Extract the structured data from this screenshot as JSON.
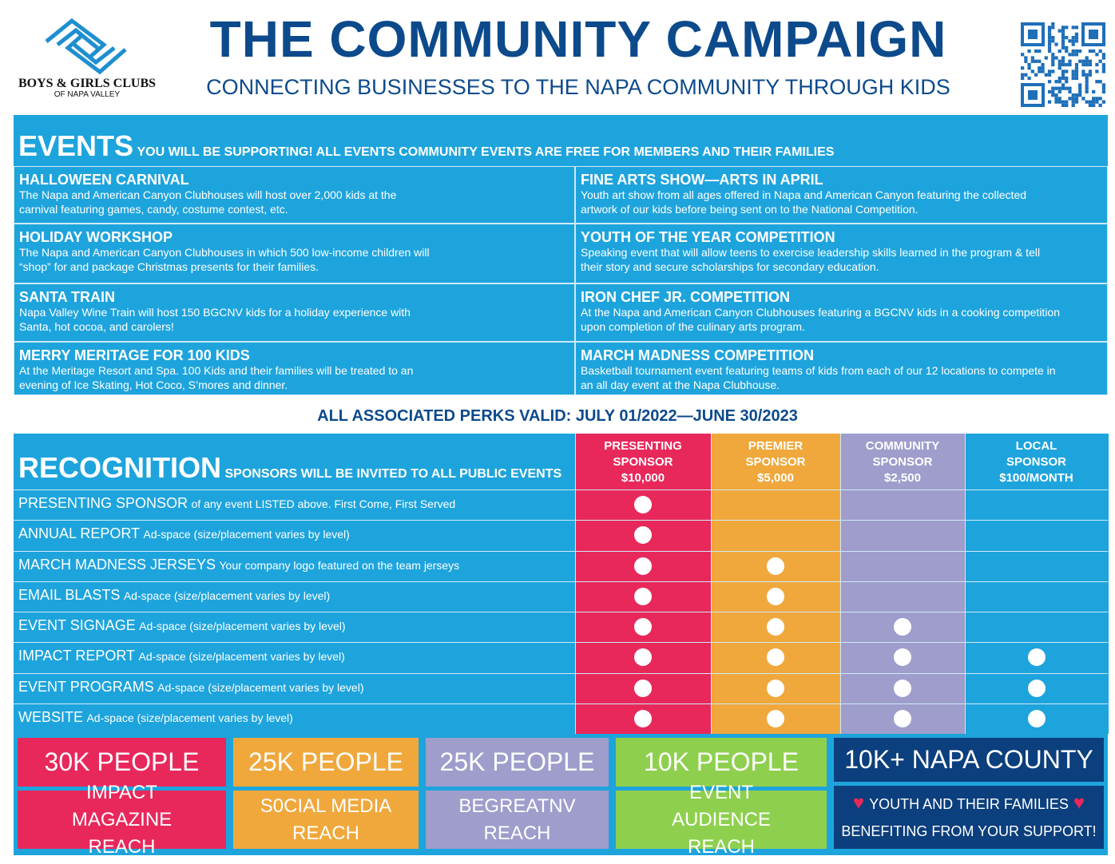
{
  "header": {
    "logo_name": "BOYS & GIRLS CLUBS",
    "logo_sub": "OF NAPA VALLEY",
    "title": "THE COMMUNITY CAMPAIGN",
    "subtitle": "CONNECTING BUSINESSES TO THE NAPA COMMUNITY THROUGH KIDS"
  },
  "events": {
    "heading": "EVENTS",
    "heading_note": "YOU WILL BE SUPPORTING! ALL EVENTS COMMUNITY EVENTS ARE FREE FOR MEMBERS AND THEIR FAMILIES",
    "items": [
      {
        "title": "HALLOWEEN CARNIVAL",
        "description": "The Napa and American Canyon Clubhouses will host over 2,000 kids at the carnival featuring games, candy, costume contest, etc."
      },
      {
        "title": "FINE ARTS SHOW—ARTS IN APRIL",
        "description": "Youth art show from all ages offered in Napa and American Canyon featuring the collected artwork of our kids before being sent on to the National Competition."
      },
      {
        "title": "HOLIDAY WORKSHOP",
        "description": "The Napa and American Canyon Clubhouses in which 500 low-income children will “shop” for and package Christmas presents for their families."
      },
      {
        "title": "YOUTH OF THE YEAR COMPETITION",
        "description": "Speaking event that will allow teens to exercise leadership skills learned in the program & tell their story and secure scholarships for secondary education."
      },
      {
        "title": "SANTA TRAIN",
        "description": "Napa Valley Wine Train will host 150 BGCNV kids for a holiday experience with Santa, hot cocoa, and carolers!"
      },
      {
        "title": "IRON CHEF JR. COMPETITION",
        "description": "At the Napa and American Canyon Clubhouses featuring a BGCNV kids in a cooking competition upon completion of the culinary arts program."
      },
      {
        "title": "MERRY MERITAGE FOR 100 KIDS",
        "description": "At the Meritage Resort and Spa. 100 Kids and their families will be treated to an evening of Ice Skating, Hot Coco, S’mores and dinner."
      },
      {
        "title": "MARCH MADNESS COMPETITION",
        "description": "Basketball tournament event featuring teams of kids from each of our 12 locations to compete in an all day event at the Napa Clubhouse."
      }
    ]
  },
  "validity": "ALL ASSOCIATED PERKS VALID: JULY 01/2022—JUNE 30/2023",
  "recognition": {
    "heading": "RECOGNITION",
    "heading_note": "SPONSORS WILL BE INVITED TO ALL PUBLIC EVENTS",
    "levels": [
      {
        "name": "PRESENTING SPONSOR",
        "price": "$10,000",
        "color": "#e8285b"
      },
      {
        "name": "PREMIER SPONSOR",
        "price": "$5,000",
        "color": "#f0a83c"
      },
      {
        "name": "COMMUNITY SPONSOR",
        "price": "$2,500",
        "color": "#9e9dcc"
      },
      {
        "name": "LOCAL SPONSOR",
        "price": "$100/MONTH",
        "color": "#1ea4dd"
      }
    ],
    "perks": [
      {
        "name": "PRESENTING SPONSOR",
        "note": "of any event LISTED above. First Come, First Served",
        "included": [
          true,
          false,
          false,
          false
        ]
      },
      {
        "name": "ANNUAL REPORT",
        "note": "Ad-space (size/placement varies by level)",
        "included": [
          true,
          false,
          false,
          false
        ]
      },
      {
        "name": "MARCH MADNESS JERSEYS",
        "note": "Your company logo featured on the team jerseys",
        "included": [
          true,
          true,
          false,
          false
        ]
      },
      {
        "name": "EMAIL BLASTS",
        "note": "Ad-space (size/placement varies by level)",
        "included": [
          true,
          true,
          false,
          false
        ]
      },
      {
        "name": "EVENT SIGNAGE",
        "note": "Ad-space (size/placement varies by level)",
        "included": [
          true,
          true,
          true,
          false
        ]
      },
      {
        "name": "IMPACT REPORT",
        "note": "Ad-space (size/placement varies by level)",
        "included": [
          true,
          true,
          true,
          true
        ]
      },
      {
        "name": "EVENT PROGRAMS",
        "note": "Ad-space (size/placement varies by level)",
        "included": [
          true,
          true,
          true,
          true
        ]
      },
      {
        "name": "WEBSITE",
        "note": "Ad-space (size/placement varies by level)",
        "included": [
          true,
          true,
          true,
          true
        ]
      }
    ]
  },
  "reach": [
    {
      "number": "30K PEOPLE",
      "label": "IMPACT MAGAZINE REACH",
      "color": "#e8285b"
    },
    {
      "number": "25K PEOPLE",
      "label": "S0CIAL MEDIA REACH",
      "color": "#f0a83c"
    },
    {
      "number": "25K PEOPLE",
      "label": "BEGREATNV REACH",
      "color": "#9e9dcc"
    },
    {
      "number": "10K PEOPLE",
      "label": "EVENT AUDIENCE REACH",
      "color": "#8ed04e"
    }
  ],
  "county": {
    "number": "10K+ NAPA COUNTY",
    "line1": "YOUTH AND THEIR FAMILIES",
    "line2": "BENEFITING FROM YOUR SUPPORT!"
  }
}
